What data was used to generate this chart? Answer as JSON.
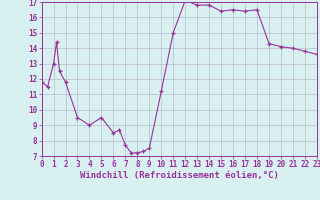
{
  "x": [
    0,
    0.5,
    1,
    1.25,
    1.5,
    2,
    3,
    4,
    5,
    6,
    6.5,
    7,
    7.5,
    8,
    8.5,
    9,
    10,
    11,
    12,
    13,
    14,
    15,
    16,
    17,
    18,
    19,
    20,
    21,
    22,
    23
  ],
  "y": [
    11.8,
    11.5,
    13.0,
    14.4,
    12.5,
    11.8,
    9.5,
    9.0,
    9.5,
    8.5,
    8.7,
    7.7,
    7.2,
    7.2,
    7.3,
    7.5,
    11.2,
    15.0,
    17.1,
    16.8,
    16.8,
    16.4,
    16.5,
    16.4,
    16.5,
    14.3,
    14.1,
    14.0,
    13.8,
    13.6
  ],
  "line_color": "#993399",
  "marker": "+",
  "bg_color": "#d8f0f0",
  "grid_color": "#bbbbcc",
  "xlabel": "Windchill (Refroidissement éolien,°C)",
  "xlim": [
    0,
    23
  ],
  "ylim": [
    7,
    17
  ],
  "xticks": [
    0,
    1,
    2,
    3,
    4,
    5,
    6,
    7,
    8,
    9,
    10,
    11,
    12,
    13,
    14,
    15,
    16,
    17,
    18,
    19,
    20,
    21,
    22,
    23
  ],
  "yticks": [
    7,
    8,
    9,
    10,
    11,
    12,
    13,
    14,
    15,
    16,
    17
  ],
  "tick_fontsize": 5.5,
  "xlabel_fontsize": 6.5,
  "tick_color": "#993399",
  "spine_color": "#993399"
}
